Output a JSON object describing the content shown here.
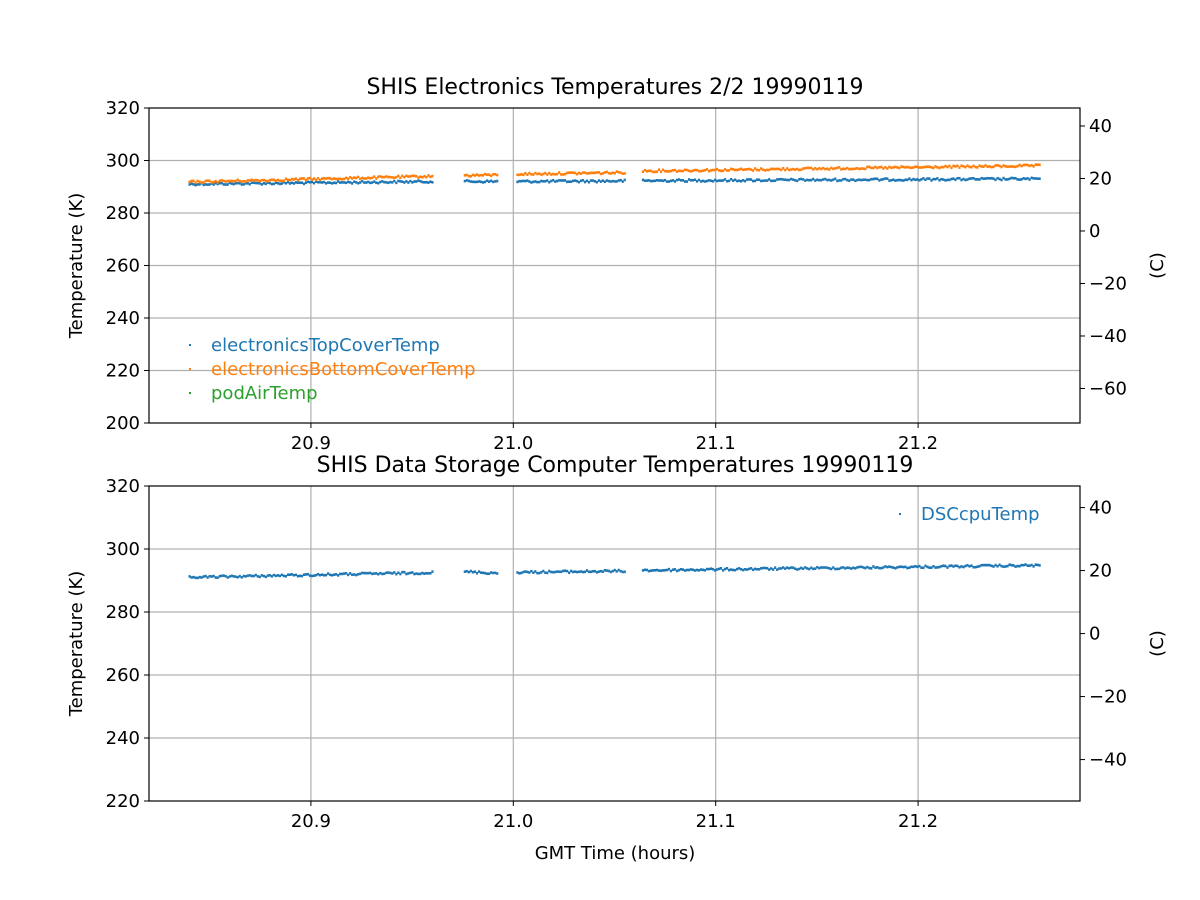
{
  "chart_data": [
    {
      "type": "scatter",
      "title": "SHIS Electronics Temperatures 2/2 19990119",
      "xlabel": "",
      "ylabel": "Temperature (K)",
      "ylabel_right": "(C)",
      "xlim": [
        20.82,
        21.28
      ],
      "ylim": [
        200,
        320
      ],
      "ylim_right": [
        -73.15,
        46.85
      ],
      "xticks": [
        "20.9",
        "21.0",
        "21.1",
        "21.2"
      ],
      "xtick_values": [
        20.9,
        21.0,
        21.1,
        21.2
      ],
      "yticks": [
        "200",
        "220",
        "240",
        "260",
        "280",
        "300",
        "320"
      ],
      "ytick_values": [
        200,
        220,
        240,
        260,
        280,
        300,
        320
      ],
      "yticks_right": [
        "−60",
        "−40",
        "−20",
        "0",
        "20",
        "40"
      ],
      "ytick_right_values": [
        -60,
        -40,
        -20,
        0,
        20,
        40
      ],
      "grid": true,
      "legend_position": "lower-left",
      "series": [
        {
          "name": "electronicsTopCoverTemp",
          "color": "#1f77b4",
          "segments": [
            {
              "x": [
                20.84,
                20.96
              ],
              "y": [
                291.0,
                292.0
              ]
            },
            {
              "x": [
                20.976,
                20.992
              ],
              "y": [
                292.0,
                292.0
              ]
            },
            {
              "x": [
                21.002,
                21.055
              ],
              "y": [
                292.0,
                292.2
              ]
            },
            {
              "x": [
                21.064,
                21.26
              ],
              "y": [
                292.3,
                293.0
              ]
            }
          ]
        },
        {
          "name": "electronicsBottomCoverTemp",
          "color": "#ff7f0e",
          "segments": [
            {
              "x": [
                20.84,
                20.96
              ],
              "y": [
                291.8,
                294.0
              ]
            },
            {
              "x": [
                20.976,
                20.992
              ],
              "y": [
                294.3,
                294.5
              ]
            },
            {
              "x": [
                21.002,
                21.055
              ],
              "y": [
                294.8,
                295.4
              ]
            },
            {
              "x": [
                21.064,
                21.26
              ],
              "y": [
                296.0,
                298.0
              ]
            }
          ]
        },
        {
          "name": "podAirTemp",
          "color": "#2ca02c",
          "segments": []
        }
      ]
    },
    {
      "type": "scatter",
      "title": "SHIS Data Storage Computer Temperatures 19990119",
      "xlabel": "GMT Time (hours)",
      "ylabel": "Temperature (K)",
      "ylabel_right": "(C)",
      "xlim": [
        20.82,
        21.28
      ],
      "ylim": [
        220,
        320
      ],
      "ylim_right": [
        -53.15,
        46.85
      ],
      "xticks": [
        "20.9",
        "21.0",
        "21.1",
        "21.2"
      ],
      "xtick_values": [
        20.9,
        21.0,
        21.1,
        21.2
      ],
      "yticks": [
        "220",
        "240",
        "260",
        "280",
        "300",
        "320"
      ],
      "ytick_values": [
        220,
        240,
        260,
        280,
        300,
        320
      ],
      "yticks_right": [
        "−40",
        "−20",
        "0",
        "20",
        "40"
      ],
      "ytick_right_values": [
        -40,
        -20,
        0,
        20,
        40
      ],
      "grid": true,
      "legend_position": "upper-right",
      "series": [
        {
          "name": "DSCcpuTemp",
          "color": "#1f77b4",
          "segments": [
            {
              "x": [
                20.84,
                20.96
              ],
              "y": [
                291.0,
                292.5
              ]
            },
            {
              "x": [
                20.976,
                20.992
              ],
              "y": [
                292.8,
                292.3
              ]
            },
            {
              "x": [
                21.002,
                21.055
              ],
              "y": [
                292.6,
                293.0
              ]
            },
            {
              "x": [
                21.064,
                21.26
              ],
              "y": [
                293.2,
                294.8
              ]
            }
          ]
        }
      ]
    }
  ]
}
